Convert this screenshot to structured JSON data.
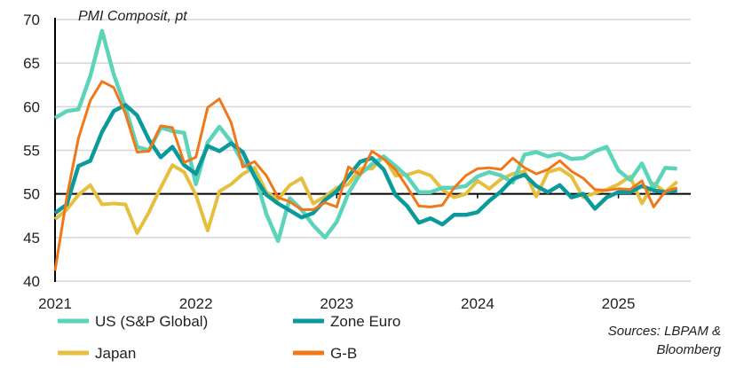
{
  "chart_data": {
    "type": "line",
    "title": "PMI Composit, pt",
    "xlabel": "",
    "ylabel": "",
    "x_start": "2021-01",
    "x_end": "2025-06",
    "frequency": "monthly",
    "x_tick_labels": [
      "2021",
      "2022",
      "2023",
      "2024",
      "2025"
    ],
    "ylim": [
      40,
      70
    ],
    "y_ticks": [
      40,
      45,
      50,
      55,
      60,
      65,
      70
    ],
    "reference_line": 50,
    "grid": "horizontal",
    "legend_position": "bottom",
    "source": [
      "Sources: LBPAM &",
      "Bloomberg"
    ],
    "series": [
      {
        "name": "US (S&P Global)",
        "color": "#5CD4B9",
        "values": [
          58.7,
          59.5,
          59.7,
          63.5,
          68.7,
          63.7,
          59.9,
          55.4,
          55.0,
          57.6,
          57.2,
          57.0,
          51.1,
          55.9,
          57.7,
          56.0,
          53.6,
          52.3,
          47.7,
          44.6,
          49.5,
          48.2,
          46.4,
          45.0,
          46.8,
          50.1,
          52.3,
          53.4,
          54.3,
          53.2,
          52.0,
          50.2,
          50.2,
          50.7,
          50.7,
          50.9,
          52.0,
          52.5,
          52.1,
          51.3,
          54.5,
          54.8,
          54.3,
          54.6,
          54.0,
          54.1,
          54.9,
          55.4,
          52.7,
          51.6,
          53.5,
          50.6,
          53.0,
          52.9
        ]
      },
      {
        "name": "Zone Euro",
        "color": "#0B9A9C",
        "values": [
          47.8,
          48.8,
          53.2,
          53.8,
          57.1,
          59.5,
          60.2,
          59.0,
          56.2,
          54.2,
          55.4,
          53.3,
          52.3,
          55.5,
          54.9,
          55.8,
          54.8,
          52.0,
          49.9,
          48.9,
          48.1,
          47.3,
          47.8,
          49.3,
          50.3,
          52.0,
          53.7,
          54.1,
          52.8,
          49.9,
          48.6,
          46.7,
          47.2,
          46.5,
          47.6,
          47.6,
          47.9,
          49.2,
          50.3,
          51.7,
          52.2,
          50.9,
          50.2,
          51.0,
          49.6,
          50.0,
          48.3,
          49.6,
          50.2,
          50.2,
          50.9,
          50.4,
          50.2,
          50.4
        ]
      },
      {
        "name": "Japan",
        "color": "#E6BF3F",
        "values": [
          47.1,
          48.2,
          49.9,
          51.0,
          48.8,
          48.9,
          48.8,
          45.5,
          47.9,
          50.7,
          53.3,
          52.5,
          49.9,
          45.8,
          50.3,
          51.1,
          52.3,
          53.0,
          50.2,
          49.4,
          51.0,
          51.8,
          48.9,
          49.7,
          50.7,
          51.1,
          52.9,
          52.9,
          54.3,
          52.1,
          52.2,
          52.6,
          52.1,
          50.5,
          49.6,
          50.0,
          51.5,
          50.6,
          51.7,
          52.3,
          52.6,
          49.7,
          52.5,
          52.9,
          52.0,
          49.6,
          50.1,
          50.5,
          51.1,
          52.0,
          48.9,
          51.2,
          50.2,
          51.4
        ]
      },
      {
        "name": "G-B",
        "color": "#F07819",
        "values": [
          41.2,
          49.6,
          56.4,
          60.7,
          62.9,
          62.2,
          59.2,
          54.8,
          54.9,
          57.8,
          57.6,
          53.6,
          54.2,
          59.9,
          60.9,
          58.2,
          53.1,
          53.7,
          52.1,
          49.6,
          49.1,
          48.2,
          48.2,
          49.0,
          48.5,
          53.1,
          52.2,
          54.9,
          54.0,
          52.8,
          50.8,
          48.6,
          48.5,
          48.7,
          50.7,
          52.1,
          52.9,
          53.0,
          52.8,
          54.1,
          53.0,
          52.3,
          52.8,
          53.8,
          52.6,
          51.8,
          50.5,
          50.4,
          50.6,
          50.5,
          51.5,
          48.5,
          50.3,
          50.7
        ]
      }
    ]
  }
}
